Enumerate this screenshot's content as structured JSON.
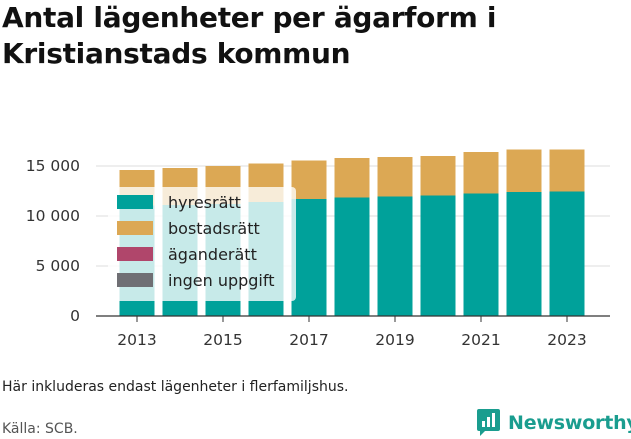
{
  "title": "Antal lägenheter per ägarform i Kristianstads kommun",
  "note": "Här inkluderas endast lägenheter i flerfamiljshus.",
  "source": "Källa: SCB.",
  "brand": "Newsworthy",
  "colors": {
    "hyresratt": "#00a19a",
    "bostadsratt": "#dca854",
    "aganderatt": "#b0466b",
    "ingen_uppgift": "#6f6f74",
    "grid": "#dddddd",
    "brand": "#1a9d8f"
  },
  "chart_data": {
    "type": "bar",
    "stacked": true,
    "categories": [
      "2013",
      "2014",
      "2015",
      "2016",
      "2017",
      "2018",
      "2019",
      "2020",
      "2021",
      "2022",
      "2023"
    ],
    "x_tick_labels": [
      "2013",
      "2015",
      "2017",
      "2019",
      "2021",
      "2023"
    ],
    "y_ticks": [
      0,
      5000,
      10000,
      15000
    ],
    "y_tick_labels": [
      "0",
      "5 000",
      "10 000",
      "15 000"
    ],
    "ylim": [
      0,
      17000
    ],
    "grid": true,
    "legend_position": "top-left",
    "series": [
      {
        "name": "hyresrätt",
        "color": "#00a19a",
        "values": [
          11050,
          11100,
          11200,
          11400,
          11700,
          11850,
          11950,
          12050,
          12250,
          12400,
          12450
        ]
      },
      {
        "name": "bostadsrätt",
        "color": "#dca854",
        "values": [
          3550,
          3700,
          3800,
          3850,
          3850,
          3950,
          3950,
          3950,
          4150,
          4250,
          4200
        ]
      },
      {
        "name": "äganderätt",
        "color": "#b0466b",
        "values": [
          0,
          0,
          0,
          0,
          0,
          0,
          0,
          0,
          0,
          0,
          0
        ]
      },
      {
        "name": "ingen uppgift",
        "color": "#6f6f74",
        "values": [
          0,
          0,
          0,
          0,
          0,
          0,
          0,
          0,
          0,
          0,
          0
        ]
      }
    ]
  }
}
